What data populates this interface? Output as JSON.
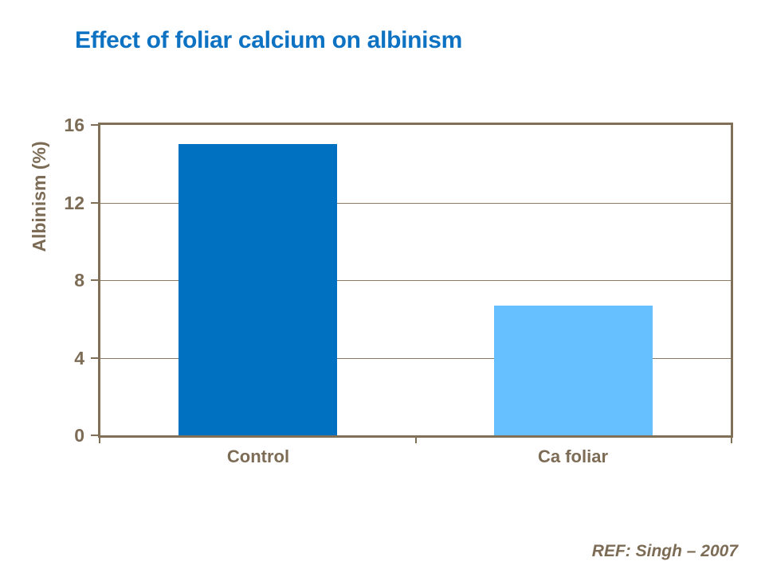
{
  "slide": {
    "title": "Effect of foliar calcium on albinism",
    "reference": "REF: Singh – 2007"
  },
  "chart_data": {
    "type": "bar",
    "title": "Effect of foliar calcium on albinism",
    "categories": [
      "Control",
      "Ca foliar"
    ],
    "values": [
      15,
      6.7
    ],
    "xlabel": "",
    "ylabel": "Albinism (%)",
    "ylim": [
      0,
      16
    ],
    "yticks": [
      0,
      4,
      8,
      12,
      16
    ],
    "grid": true,
    "legend_position": "none",
    "bar_colors": [
      "#0070C0",
      "#66BFFF"
    ]
  },
  "colors": {
    "title_blue": "#0D72C2",
    "bar_dark_blue": "#0070C0",
    "bar_light_blue": "#66BFFF",
    "axis_brown": "#7F7057",
    "grid_brown": "#8A7964",
    "text_brown": "#7D6C55",
    "background": "#FFFFFF"
  }
}
